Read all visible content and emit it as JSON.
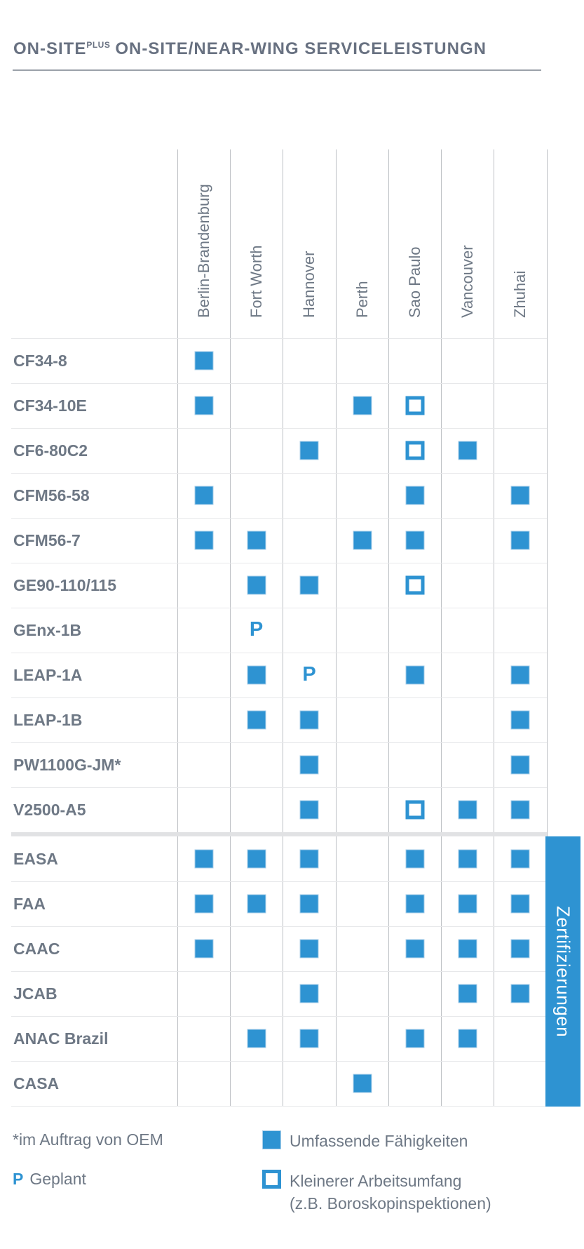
{
  "title": {
    "part1": "ON-SITE",
    "sup": "PLUS",
    "part2": "ON-SITE/NEAR-WING SERVICELEISTUNGN"
  },
  "colors": {
    "accent_blue": "#2e93d2",
    "text_gray": "#6e7885",
    "grid_vertical_line": "#bdc0c4",
    "grid_horizontal_line": "#e7e8ea",
    "banner_text": "#ffffff"
  },
  "chart_data": {
    "type": "table",
    "title": "ON-SITEPLUS ON-SITE/NEAR-WING SERVICELEISTUNGN",
    "legend_position": "bottom",
    "cell_code_meaning": {
      "F": "Umfassende Fähigkeiten (filled square)",
      "O": "Kleinerer Arbeitsumfang (outlined square)",
      "P": "Geplant (planned)",
      "": "no service"
    },
    "columns": [
      "Berlin-Brandenburg",
      "Fort Worth",
      "Hannover",
      "Perth",
      "Sao Paulo",
      "Vancouver",
      "Zhuhai"
    ],
    "engine_rows": [
      {
        "label": "CF34-8",
        "cells": [
          "F",
          "",
          "",
          "",
          "",
          "",
          ""
        ]
      },
      {
        "label": "CF34-10E",
        "cells": [
          "F",
          "",
          "",
          "F",
          "O",
          "",
          ""
        ]
      },
      {
        "label": "CF6-80C2",
        "cells": [
          "",
          "",
          "F",
          "",
          "O",
          "F",
          ""
        ]
      },
      {
        "label": "CFM56-58",
        "cells": [
          "F",
          "",
          "",
          "",
          "F",
          "",
          "F"
        ]
      },
      {
        "label": "CFM56-7",
        "cells": [
          "F",
          "F",
          "",
          "F",
          "F",
          "",
          "F"
        ]
      },
      {
        "label": "GE90-110/115",
        "cells": [
          "",
          "F",
          "F",
          "",
          "O",
          "",
          ""
        ]
      },
      {
        "label": "GEnx-1B",
        "cells": [
          "",
          "P",
          "",
          "",
          "",
          "",
          ""
        ]
      },
      {
        "label": "LEAP-1A",
        "cells": [
          "",
          "F",
          "P",
          "",
          "F",
          "",
          "F"
        ]
      },
      {
        "label": "LEAP-1B",
        "cells": [
          "",
          "F",
          "F",
          "",
          "",
          "",
          "F"
        ]
      },
      {
        "label": "PW1100G-JM*",
        "cells": [
          "",
          "",
          "F",
          "",
          "",
          "",
          "F"
        ]
      },
      {
        "label": "V2500-A5",
        "cells": [
          "",
          "",
          "F",
          "",
          "O",
          "F",
          "F"
        ]
      }
    ],
    "cert_rows": [
      {
        "label": "EASA",
        "cells": [
          "F",
          "F",
          "F",
          "",
          "F",
          "F",
          "F"
        ]
      },
      {
        "label": "FAA",
        "cells": [
          "F",
          "F",
          "F",
          "",
          "F",
          "F",
          "F"
        ]
      },
      {
        "label": "CAAC",
        "cells": [
          "F",
          "",
          "F",
          "",
          "F",
          "F",
          "F"
        ]
      },
      {
        "label": "JCAB",
        "cells": [
          "",
          "",
          "F",
          "",
          "",
          "F",
          "F"
        ]
      },
      {
        "label": "ANAC Brazil",
        "cells": [
          "",
          "F",
          "F",
          "",
          "F",
          "F",
          ""
        ]
      },
      {
        "label": "CASA",
        "cells": [
          "",
          "",
          "",
          "F",
          "",
          "",
          ""
        ]
      }
    ],
    "banner_label": "Zertifizierungen"
  },
  "legend": {
    "oem_note": "*im Auftrag von OEM",
    "planned_symbol": "P",
    "planned_label": "Geplant",
    "filled_label": "Umfassende Fähigkeiten",
    "outline_label_line1": "Kleinerer Arbeitsumfang",
    "outline_label_line2": "(z.B. Boroskopinspektionen)"
  }
}
